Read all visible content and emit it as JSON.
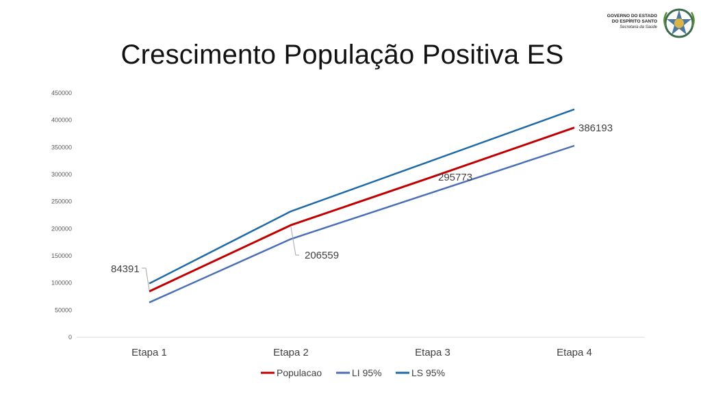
{
  "slide": {
    "title": "Crescimento População Positiva ES"
  },
  "logo": {
    "line1": "GOVERNO DO ESTADO",
    "line2": "DO ESPÍRITO SANTO",
    "line3": "Secretaria da Saúde",
    "emblem": "coat-of-arms-icon"
  },
  "chart_data": {
    "type": "line",
    "categories": [
      "Etapa 1",
      "Etapa 2",
      "Etapa 3",
      "Etapa 4"
    ],
    "ylim": [
      0,
      450000
    ],
    "yticks": [
      0,
      50000,
      100000,
      150000,
      200000,
      250000,
      300000,
      350000,
      400000,
      450000
    ],
    "grid": false,
    "legend": "bottom",
    "series": [
      {
        "name": "Populacao",
        "color": "#c00000",
        "values": [
          84391,
          206559,
          295773,
          386193
        ],
        "data_labels": [
          "84391",
          "206559",
          "295773",
          "386193"
        ]
      },
      {
        "name": "LI 95%",
        "color": "#4a6fb5",
        "values": [
          64000,
          181000,
          267000,
          353000
        ]
      },
      {
        "name": "LS 95%",
        "color": "#1f6aa6",
        "values": [
          99000,
          232000,
          326000,
          420000
        ]
      }
    ]
  }
}
